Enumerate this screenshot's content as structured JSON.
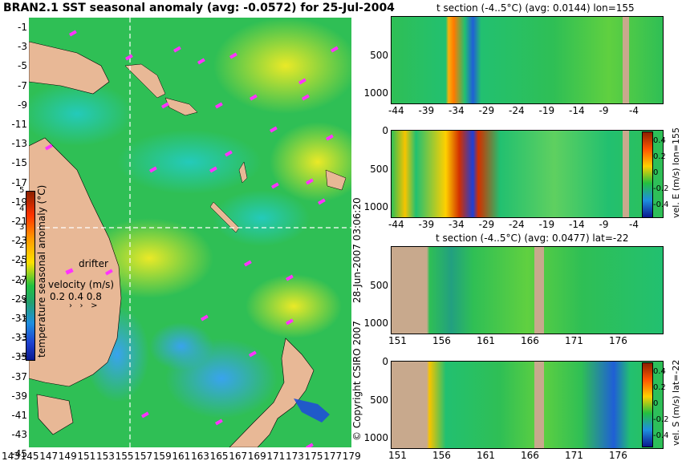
{
  "main_title": "BRAN2.1 SST seasonal anomaly (avg: -0.0572) for 25-Jul-2004",
  "map": {
    "lat_labels": [
      "-1",
      "-3",
      "-5",
      "-7",
      "-9",
      "-11",
      "-13",
      "-15",
      "-17",
      "-19",
      "-21",
      "-23",
      "-25",
      "-27",
      "-29",
      "-31",
      "-33",
      "-35",
      "-37",
      "-39",
      "-41",
      "-43",
      "-45"
    ],
    "lon_labels": [
      "143",
      "145",
      "147",
      "149",
      "151",
      "153",
      "155",
      "157",
      "159",
      "161",
      "163",
      "165",
      "167",
      "169",
      "171",
      "173",
      "175",
      "177",
      "179"
    ],
    "colorbar_label": "temperature seasonal anomaly (°C)",
    "colorbar_ticks": [
      "5",
      "4",
      "3",
      "2",
      "1",
      "0",
      "-1",
      "-2",
      "-3",
      "-4"
    ],
    "drifter_label": "drifter",
    "velocity_label": "velocity (m/s)",
    "velocity_values": "0.2 0.4 0.8",
    "colors": {
      "land": "#e8b896",
      "drifter": "#ff33ff",
      "section_line": "#ffffff"
    }
  },
  "copyright_vertical": "© Copyright CSIRO 2007",
  "date_vertical": "28-Jun-2007 03:06:20",
  "panels": [
    {
      "title": "t section (-4..5°C) (avg: 0.0144) lon=155",
      "y_ticks": [
        "500",
        "1000"
      ],
      "x_ticks": [
        "-44",
        "-39",
        "-34",
        "-29",
        "-24",
        "-19",
        "-14",
        "-9",
        "-4"
      ],
      "side_label": ""
    },
    {
      "title": "",
      "y_ticks": [
        "0",
        "500",
        "1000"
      ],
      "x_ticks": [
        "-44",
        "-39",
        "-34",
        "-29",
        "-24",
        "-19",
        "-14",
        "-9",
        "-4"
      ],
      "side_label": "vel. E (m/s) lon=155",
      "cbar_ticks": [
        "0.4",
        "0.2",
        "0",
        "-0.2",
        "-0.4"
      ]
    },
    {
      "title": "t section (-4..5°C) (avg: 0.0477) lat=-22",
      "y_ticks": [
        "500",
        "1000"
      ],
      "x_ticks": [
        "151",
        "156",
        "161",
        "166",
        "171",
        "176"
      ],
      "side_label": ""
    },
    {
      "title": "",
      "y_ticks": [
        "0",
        "500",
        "1000"
      ],
      "x_ticks": [
        "151",
        "156",
        "161",
        "166",
        "171",
        "176"
      ],
      "side_label": "vel. S (m/s) lat=-22",
      "cbar_ticks": [
        "0.4",
        "0.2",
        "0",
        "-0.2",
        "-0.4"
      ]
    }
  ]
}
